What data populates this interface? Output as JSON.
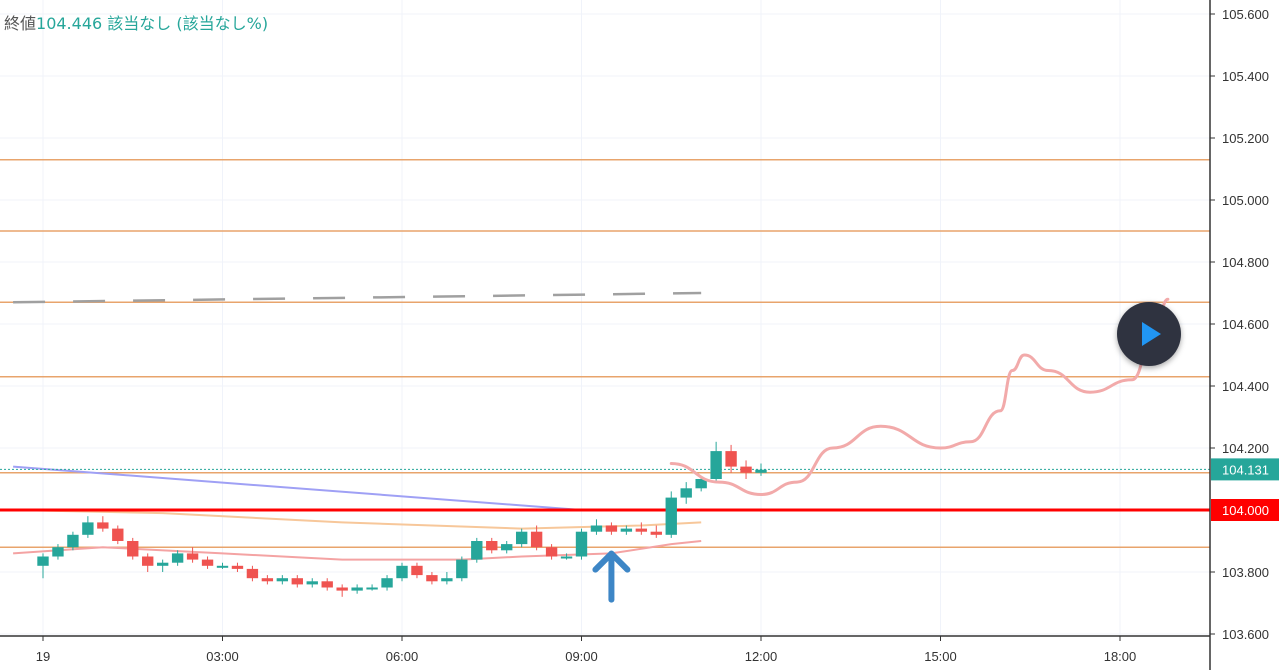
{
  "legend": {
    "label": "終値",
    "value": "104.446",
    "na1": "該当なし",
    "na2": "(該当なし%)"
  },
  "play_button": {
    "icon": "play-icon",
    "color": "#2196f3"
  },
  "colors": {
    "up": "#26a69a",
    "down": "#ef5350",
    "hline": "#e8a46c",
    "key_level": "#ff0000",
    "ma_blue": "#9fa0f5",
    "ma_orange": "#f7c79a",
    "ma_red": "#f4a3a3",
    "projection": "#f2aaaa",
    "dashed": "#a0a0a0",
    "arrow": "#3d86c6"
  },
  "chart_data": {
    "type": "candlestick",
    "x_tick_labels": [
      "19",
      "03:00",
      "06:00",
      "09:00",
      "12:00",
      "15:00",
      "18:00"
    ],
    "x_tick_hours": [
      0,
      3,
      6,
      9,
      12,
      15,
      18
    ],
    "y_tick_labels": [
      "105.600",
      "105.400",
      "105.200",
      "105.000",
      "104.800",
      "104.600",
      "104.400",
      "104.200",
      "103.800",
      "103.600"
    ],
    "ylim": [
      103.6,
      105.6
    ],
    "current_price": {
      "label": "104.131",
      "value": 104.131,
      "color": "#26a69a"
    },
    "key_level": {
      "label": "104.000",
      "value": 104.0,
      "color": "#ff0000"
    },
    "horizontal_levels": [
      105.13,
      104.9,
      104.67,
      104.43,
      104.12,
      103.88
    ],
    "dashed_trend": [
      [
        -0.5,
        104.67
      ],
      [
        11,
        104.7
      ]
    ],
    "arrow_up_at": {
      "hour": 9.5,
      "price": 103.84
    },
    "candle_interval_minutes": 15,
    "candles_ohlc": [
      [
        103.82,
        103.86,
        103.78,
        103.85
      ],
      [
        103.85,
        103.89,
        103.84,
        103.88
      ],
      [
        103.88,
        103.93,
        103.87,
        103.92
      ],
      [
        103.92,
        103.98,
        103.91,
        103.96
      ],
      [
        103.96,
        103.98,
        103.93,
        103.94
      ],
      [
        103.94,
        103.95,
        103.89,
        103.9
      ],
      [
        103.9,
        103.91,
        103.84,
        103.85
      ],
      [
        103.85,
        103.86,
        103.8,
        103.82
      ],
      [
        103.82,
        103.84,
        103.8,
        103.83
      ],
      [
        103.83,
        103.87,
        103.82,
        103.86
      ],
      [
        103.86,
        103.88,
        103.83,
        103.84
      ],
      [
        103.84,
        103.85,
        103.81,
        103.82
      ],
      [
        103.82,
        103.83,
        103.81,
        103.82
      ],
      [
        103.82,
        103.83,
        103.8,
        103.81
      ],
      [
        103.81,
        103.82,
        103.77,
        103.78
      ],
      [
        103.78,
        103.79,
        103.76,
        103.77
      ],
      [
        103.77,
        103.79,
        103.76,
        103.78
      ],
      [
        103.78,
        103.79,
        103.75,
        103.76
      ],
      [
        103.76,
        103.78,
        103.75,
        103.77
      ],
      [
        103.77,
        103.78,
        103.74,
        103.75
      ],
      [
        103.75,
        103.76,
        103.72,
        103.74
      ],
      [
        103.74,
        103.76,
        103.73,
        103.75
      ],
      [
        103.75,
        103.76,
        103.74,
        103.75
      ],
      [
        103.75,
        103.79,
        103.74,
        103.78
      ],
      [
        103.78,
        103.83,
        103.77,
        103.82
      ],
      [
        103.82,
        103.83,
        103.78,
        103.79
      ],
      [
        103.79,
        103.8,
        103.76,
        103.77
      ],
      [
        103.77,
        103.8,
        103.76,
        103.78
      ],
      [
        103.78,
        103.85,
        103.77,
        103.84
      ],
      [
        103.84,
        103.91,
        103.83,
        103.9
      ],
      [
        103.9,
        103.91,
        103.86,
        103.87
      ],
      [
        103.87,
        103.9,
        103.86,
        103.89
      ],
      [
        103.89,
        103.94,
        103.88,
        103.93
      ],
      [
        103.93,
        103.95,
        103.87,
        103.88
      ],
      [
        103.88,
        103.89,
        103.84,
        103.85
      ],
      [
        103.85,
        103.86,
        103.84,
        103.85
      ],
      [
        103.85,
        103.94,
        103.84,
        103.93
      ],
      [
        103.93,
        103.97,
        103.92,
        103.95
      ],
      [
        103.95,
        103.96,
        103.92,
        103.93
      ],
      [
        103.93,
        103.95,
        103.92,
        103.94
      ],
      [
        103.94,
        103.96,
        103.92,
        103.93
      ],
      [
        103.93,
        103.95,
        103.91,
        103.92
      ],
      [
        103.92,
        104.06,
        103.91,
        104.04
      ],
      [
        104.04,
        104.09,
        104.02,
        104.07
      ],
      [
        104.07,
        104.11,
        104.06,
        104.1
      ],
      [
        104.1,
        104.22,
        104.09,
        104.19
      ],
      [
        104.19,
        104.21,
        104.12,
        104.14
      ],
      [
        104.14,
        104.16,
        104.1,
        104.12
      ],
      [
        104.12,
        104.15,
        104.11,
        104.13
      ]
    ],
    "series": [
      {
        "name": "",
        "color": "#9fa0f5",
        "points": [
          [
            -0.5,
            104.14
          ],
          [
            9,
            104.0
          ]
        ]
      },
      {
        "name": "",
        "color": "#f7c79a",
        "points": [
          [
            -0.5,
            104.0
          ],
          [
            2,
            103.99
          ],
          [
            5,
            103.96
          ],
          [
            8,
            103.94
          ],
          [
            10,
            103.95
          ],
          [
            11,
            103.96
          ]
        ]
      },
      {
        "name": "",
        "color": "#f4a3a3",
        "points": [
          [
            -0.5,
            103.86
          ],
          [
            1,
            103.88
          ],
          [
            3,
            103.86
          ],
          [
            5,
            103.84
          ],
          [
            7,
            103.84
          ],
          [
            8,
            103.85
          ],
          [
            9.5,
            103.86
          ],
          [
            10.5,
            103.89
          ],
          [
            11,
            103.9
          ]
        ]
      }
    ],
    "projection": [
      [
        10.5,
        104.15
      ],
      [
        11.3,
        104.09
      ],
      [
        12,
        104.05
      ],
      [
        12.6,
        104.09
      ],
      [
        13.2,
        104.2
      ],
      [
        14,
        104.27
      ],
      [
        15,
        104.2
      ],
      [
        15.5,
        104.22
      ],
      [
        16,
        104.32
      ],
      [
        16.2,
        104.45
      ],
      [
        16.4,
        104.5
      ],
      [
        16.8,
        104.45
      ],
      [
        17.5,
        104.38
      ],
      [
        18.2,
        104.42
      ],
      [
        18.6,
        104.6
      ],
      [
        18.8,
        104.68
      ]
    ]
  }
}
